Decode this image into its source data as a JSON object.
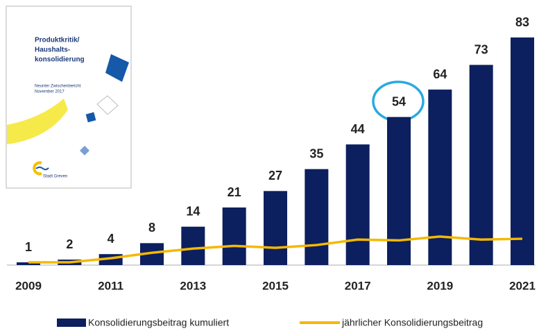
{
  "chart_data": {
    "type": "bar",
    "categories": [
      "2009",
      null,
      "2011",
      null,
      "2013",
      null,
      "2015",
      null,
      "2017",
      null,
      "2019",
      null,
      "2021"
    ],
    "series": [
      {
        "name": "Konsolidierungsbeitrag kumuliert",
        "type": "bar",
        "color": "#0c1f5e",
        "values": [
          1,
          2,
          4,
          8,
          14,
          21,
          27,
          35,
          44,
          54,
          64,
          73,
          83
        ]
      },
      {
        "name": "jährlicher Konsolidierungsbeitrag",
        "type": "line",
        "color": "#f5b800",
        "values": [
          1,
          1,
          2.5,
          4.5,
          6,
          7,
          6.3,
          7.3,
          9.3,
          9,
          10.4,
          9.3,
          9.6
        ]
      }
    ],
    "legend": "bottom"
  },
  "inset": {
    "title": [
      "Produktkritik/",
      "Haushalts-",
      "konsolidierung"
    ],
    "subtitle": [
      "Neunter Zwischenbericht",
      "November 2017"
    ],
    "logo": "Stadt Greven"
  }
}
